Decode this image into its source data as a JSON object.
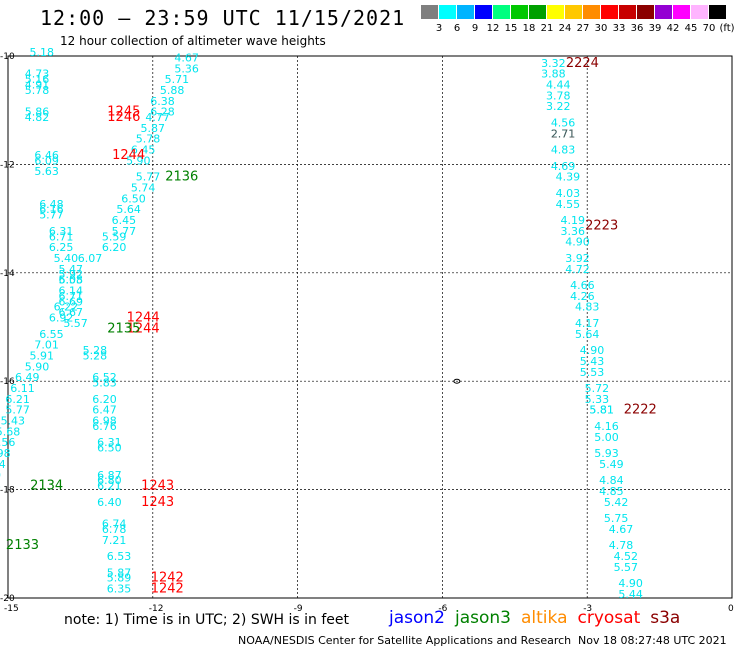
{
  "title": "12:00 – 23:59 UTC 11/15/2021",
  "subtitle": "12 hour collection of altimeter wave heights",
  "scale": {
    "labels": [
      "3",
      "6",
      "9",
      "12",
      "15",
      "18",
      "21",
      "24",
      "27",
      "30",
      "33",
      "36",
      "39",
      "42",
      "45",
      "70",
      "(ft)"
    ],
    "colors": [
      "#7f7f7f",
      "#00ffff",
      "#00b4ff",
      "#0000ff",
      "#00ff7f",
      "#00c800",
      "#00a000",
      "#ffff00",
      "#ffc800",
      "#ff8c00",
      "#ff0000",
      "#c80000",
      "#8b0000",
      "#9400d3",
      "#ff00ff",
      "#ffb4ff",
      "#000000"
    ]
  },
  "axes": {
    "x_ticks": [
      "-15",
      "-12",
      "-9",
      "-6",
      "-3",
      "0"
    ],
    "y_ticks": [
      "-10",
      "-12",
      "-14",
      "-16",
      "-18",
      "-20"
    ]
  },
  "swh_color": "#00e5ee",
  "passes": {
    "cryosat_color": "#ff0000",
    "s3a_color": "#8b0000",
    "jason3_color": "#008000",
    "labels": [
      {
        "text": "2224",
        "lon": -3.1,
        "lat": -10.2,
        "sat": "s3a"
      },
      {
        "text": "2223",
        "lon": -2.7,
        "lat": -13.2,
        "sat": "s3a"
      },
      {
        "text": "2222",
        "lon": -1.9,
        "lat": -16.6,
        "sat": "s3a"
      },
      {
        "text": "1245",
        "lon": -12.6,
        "lat": -11.1,
        "sat": "cryosat"
      },
      {
        "text": "1246",
        "lon": -12.6,
        "lat": -11.2,
        "sat": "cryosat"
      },
      {
        "text": "1244",
        "lon": -12.5,
        "lat": -11.9,
        "sat": "cryosat"
      },
      {
        "text": "1244",
        "lon": -12.2,
        "lat": -14.9,
        "sat": "cryosat"
      },
      {
        "text": "1244",
        "lon": -12.2,
        "lat": -15.1,
        "sat": "cryosat"
      },
      {
        "text": "1243",
        "lon": -11.9,
        "lat": -18.0,
        "sat": "cryosat"
      },
      {
        "text": "1243",
        "lon": -11.9,
        "lat": -18.3,
        "sat": "cryosat"
      },
      {
        "text": "1242",
        "lon": -11.7,
        "lat": -19.7,
        "sat": "cryosat"
      },
      {
        "text": "1242",
        "lon": -11.7,
        "lat": -19.9,
        "sat": "cryosat"
      },
      {
        "text": "2136",
        "lon": -11.4,
        "lat": -12.3,
        "sat": "jason3"
      },
      {
        "text": "2135",
        "lon": -12.6,
        "lat": -15.1,
        "sat": "jason3"
      },
      {
        "text": "2134",
        "lon": -14.2,
        "lat": -18.0,
        "sat": "jason3"
      },
      {
        "text": "2133",
        "lon": -14.7,
        "lat": -19.1,
        "sat": "jason3"
      }
    ]
  },
  "waves": [
    {
      "lon": -14.3,
      "lat": -10.0,
      "v": "5.18"
    },
    {
      "lon": -11.3,
      "lat": -10.1,
      "v": "4.67"
    },
    {
      "lon": -11.3,
      "lat": -10.3,
      "v": "5.36"
    },
    {
      "lon": -14.4,
      "lat": -10.4,
      "v": "4.73"
    },
    {
      "lon": -11.5,
      "lat": -10.5,
      "v": "5.71"
    },
    {
      "lon": -14.4,
      "lat": -10.5,
      "v": "5.16"
    },
    {
      "lon": -14.4,
      "lat": -10.6,
      "v": "4.91"
    },
    {
      "lon": -11.6,
      "lat": -10.7,
      "v": "5.88"
    },
    {
      "lon": -14.4,
      "lat": -10.7,
      "v": "5.78"
    },
    {
      "lon": -11.8,
      "lat": -10.9,
      "v": "6.38"
    },
    {
      "lon": -11.8,
      "lat": -11.1,
      "v": "6.28"
    },
    {
      "lon": -14.4,
      "lat": -11.1,
      "v": "5.86"
    },
    {
      "lon": -11.9,
      "lat": -11.2,
      "v": "4.77"
    },
    {
      "lon": -14.4,
      "lat": -11.2,
      "v": "4.82"
    },
    {
      "lon": -12.0,
      "lat": -11.4,
      "v": "5.87"
    },
    {
      "lon": -12.1,
      "lat": -11.6,
      "v": "5.78"
    },
    {
      "lon": -12.2,
      "lat": -11.8,
      "v": "6.45"
    },
    {
      "lon": -14.2,
      "lat": -11.9,
      "v": "6.46"
    },
    {
      "lon": -14.2,
      "lat": -12.0,
      "v": "6.09"
    },
    {
      "lon": -12.3,
      "lat": -12.0,
      "v": "5.90"
    },
    {
      "lon": -14.2,
      "lat": -12.2,
      "v": "5.63"
    },
    {
      "lon": -12.1,
      "lat": -12.3,
      "v": "5.77"
    },
    {
      "lon": -12.2,
      "lat": -12.5,
      "v": "5.74"
    },
    {
      "lon": -12.4,
      "lat": -12.7,
      "v": "6.50"
    },
    {
      "lon": -14.1,
      "lat": -12.8,
      "v": "6.48"
    },
    {
      "lon": -14.1,
      "lat": -12.9,
      "v": "6.16"
    },
    {
      "lon": -12.5,
      "lat": -12.9,
      "v": "5.64"
    },
    {
      "lon": -14.1,
      "lat": -13.0,
      "v": "5.77"
    },
    {
      "lon": -12.6,
      "lat": -13.1,
      "v": "6.45"
    },
    {
      "lon": -12.6,
      "lat": -13.3,
      "v": "5.77"
    },
    {
      "lon": -13.9,
      "lat": -13.3,
      "v": "6.31"
    },
    {
      "lon": -13.9,
      "lat": -13.4,
      "v": "6.71"
    },
    {
      "lon": -12.8,
      "lat": -13.4,
      "v": "5.59"
    },
    {
      "lon": -13.9,
      "lat": -13.6,
      "v": "6.25"
    },
    {
      "lon": -12.8,
      "lat": -13.6,
      "v": "6.20"
    },
    {
      "lon": -13.8,
      "lat": -13.8,
      "v": "5.40"
    },
    {
      "lon": -13.3,
      "lat": -13.8,
      "v": "6.07"
    },
    {
      "lon": -13.7,
      "lat": -14.0,
      "v": "5.47"
    },
    {
      "lon": -13.7,
      "lat": -14.1,
      "v": "5.92"
    },
    {
      "lon": -13.7,
      "lat": -14.2,
      "v": "6.05"
    },
    {
      "lon": -13.7,
      "lat": -14.2,
      "v": "5.58"
    },
    {
      "lon": -13.7,
      "lat": -14.4,
      "v": "6.14"
    },
    {
      "lon": -13.7,
      "lat": -14.5,
      "v": "6.71"
    },
    {
      "lon": -13.7,
      "lat": -14.6,
      "v": "6.69"
    },
    {
      "lon": -13.8,
      "lat": -14.7,
      "v": "6.22"
    },
    {
      "lon": -13.7,
      "lat": -14.8,
      "v": "6.67"
    },
    {
      "lon": -13.9,
      "lat": -14.9,
      "v": "6.92"
    },
    {
      "lon": -13.6,
      "lat": -15.0,
      "v": "5.57"
    },
    {
      "lon": -14.1,
      "lat": -15.2,
      "v": "6.55"
    },
    {
      "lon": -14.2,
      "lat": -15.4,
      "v": "7.01"
    },
    {
      "lon": -13.2,
      "lat": -15.5,
      "v": "5.28"
    },
    {
      "lon": -14.3,
      "lat": -15.6,
      "v": "5.91"
    },
    {
      "lon": -13.2,
      "lat": -15.6,
      "v": "5.28"
    },
    {
      "lon": -14.4,
      "lat": -15.8,
      "v": "5.90"
    },
    {
      "lon": -13.0,
      "lat": -16.0,
      "v": "6.52"
    },
    {
      "lon": -14.6,
      "lat": -16.0,
      "v": "6.49"
    },
    {
      "lon": -13.0,
      "lat": -16.1,
      "v": "5.83"
    },
    {
      "lon": -14.7,
      "lat": -16.2,
      "v": "6.11"
    },
    {
      "lon": -13.0,
      "lat": -16.4,
      "v": "6.20"
    },
    {
      "lon": -14.8,
      "lat": -16.4,
      "v": "6.21"
    },
    {
      "lon": -14.8,
      "lat": -16.6,
      "v": "5.77"
    },
    {
      "lon": -13.0,
      "lat": -16.6,
      "v": "6.47"
    },
    {
      "lon": -14.9,
      "lat": -16.8,
      "v": "5.43"
    },
    {
      "lon": -13.0,
      "lat": -16.8,
      "v": "6.98"
    },
    {
      "lon": -13.0,
      "lat": -16.9,
      "v": "6.76"
    },
    {
      "lon": -15.0,
      "lat": -17.0,
      "v": "5.68"
    },
    {
      "lon": -12.9,
      "lat": -17.2,
      "v": "6.31"
    },
    {
      "lon": -15.1,
      "lat": -17.2,
      "v": "5.56"
    },
    {
      "lon": -12.9,
      "lat": -17.3,
      "v": "6.50"
    },
    {
      "lon": -15.2,
      "lat": -17.4,
      "v": "5.98"
    },
    {
      "lon": -15.3,
      "lat": -17.6,
      "v": "6.24"
    },
    {
      "lon": -12.9,
      "lat": -17.8,
      "v": "6.87"
    },
    {
      "lon": -12.9,
      "lat": -17.9,
      "v": "6.80"
    },
    {
      "lon": -15.4,
      "lat": -17.8,
      "v": "5.50"
    },
    {
      "lon": -12.9,
      "lat": -18.0,
      "v": "6.21"
    },
    {
      "lon": -15.4,
      "lat": -18.0,
      "v": "5.43"
    },
    {
      "lon": -15.5,
      "lat": -18.2,
      "v": "5.76"
    },
    {
      "lon": -12.9,
      "lat": -18.3,
      "v": "6.40"
    },
    {
      "lon": -15.6,
      "lat": -18.4,
      "v": "5.72"
    },
    {
      "lon": -15.7,
      "lat": -18.6,
      "v": "6.43"
    },
    {
      "lon": -12.8,
      "lat": -18.7,
      "v": "6.74"
    },
    {
      "lon": -12.8,
      "lat": -18.8,
      "v": "6.78"
    },
    {
      "lon": -15.7,
      "lat": -18.8,
      "v": "5.76"
    },
    {
      "lon": -12.8,
      "lat": -19.0,
      "v": "7.21"
    },
    {
      "lon": -15.8,
      "lat": -19.0,
      "v": "5.47"
    },
    {
      "lon": -15.9,
      "lat": -19.1,
      "v": "4.86"
    },
    {
      "lon": -12.7,
      "lat": -19.3,
      "v": "6.53"
    },
    {
      "lon": -12.7,
      "lat": -19.6,
      "v": "5.87"
    },
    {
      "lon": -12.7,
      "lat": -19.7,
      "v": "5.89"
    },
    {
      "lon": -12.7,
      "lat": -19.9,
      "v": "6.35"
    },
    {
      "lon": -3.7,
      "lat": -10.2,
      "v": "3.32"
    },
    {
      "lon": -3.7,
      "lat": -10.4,
      "v": "3.88"
    },
    {
      "lon": -3.6,
      "lat": -10.6,
      "v": "4.44"
    },
    {
      "lon": -3.6,
      "lat": -10.8,
      "v": "3.78"
    },
    {
      "lon": -3.6,
      "lat": -11.0,
      "v": "3.22"
    },
    {
      "lon": -3.5,
      "lat": -11.3,
      "v": "4.56"
    },
    {
      "lon": -3.5,
      "lat": -11.5,
      "v": "2.71"
    },
    {
      "lon": -3.5,
      "lat": -11.8,
      "v": "4.83"
    },
    {
      "lon": -3.5,
      "lat": -12.1,
      "v": "4.69"
    },
    {
      "lon": -3.4,
      "lat": -12.3,
      "v": "4.39"
    },
    {
      "lon": -3.4,
      "lat": -12.6,
      "v": "4.03"
    },
    {
      "lon": -3.4,
      "lat": -12.8,
      "v": "4.55"
    },
    {
      "lon": -3.3,
      "lat": -13.1,
      "v": "4.19"
    },
    {
      "lon": -3.3,
      "lat": -13.3,
      "v": "3.36"
    },
    {
      "lon": -3.2,
      "lat": -13.5,
      "v": "4.90"
    },
    {
      "lon": -3.2,
      "lat": -13.8,
      "v": "3.92"
    },
    {
      "lon": -3.2,
      "lat": -14.0,
      "v": "4.72"
    },
    {
      "lon": -3.1,
      "lat": -14.3,
      "v": "4.66"
    },
    {
      "lon": -3.1,
      "lat": -14.5,
      "v": "4.26"
    },
    {
      "lon": -3.0,
      "lat": -14.7,
      "v": "4.83"
    },
    {
      "lon": -3.0,
      "lat": -15.0,
      "v": "4.17"
    },
    {
      "lon": -3.0,
      "lat": -15.2,
      "v": "5.64"
    },
    {
      "lon": -2.9,
      "lat": -15.5,
      "v": "4.90"
    },
    {
      "lon": -2.9,
      "lat": -15.7,
      "v": "5.43"
    },
    {
      "lon": -2.9,
      "lat": -15.9,
      "v": "5.53"
    },
    {
      "lon": -2.8,
      "lat": -16.2,
      "v": "5.72"
    },
    {
      "lon": -2.8,
      "lat": -16.4,
      "v": "5.33"
    },
    {
      "lon": -2.7,
      "lat": -16.6,
      "v": "5.81"
    },
    {
      "lon": -2.7,
      "lat": -16.6,
      "v": "5.81"
    },
    {
      "lon": -2.6,
      "lat": -16.9,
      "v": "4.16"
    },
    {
      "lon": -2.6,
      "lat": -17.1,
      "v": "5.00"
    },
    {
      "lon": -2.6,
      "lat": -17.4,
      "v": "5.93"
    },
    {
      "lon": -2.5,
      "lat": -17.6,
      "v": "5.49"
    },
    {
      "lon": -2.5,
      "lat": -17.9,
      "v": "4.84"
    },
    {
      "lon": -2.5,
      "lat": -18.1,
      "v": "4.85"
    },
    {
      "lon": -2.4,
      "lat": -18.3,
      "v": "5.42"
    },
    {
      "lon": -2.4,
      "lat": -18.6,
      "v": "5.75"
    },
    {
      "lon": -2.3,
      "lat": -18.8,
      "v": "4.67"
    },
    {
      "lon": -2.3,
      "lat": -19.1,
      "v": "4.78"
    },
    {
      "lon": -2.2,
      "lat": -19.3,
      "v": "4.52"
    },
    {
      "lon": -2.2,
      "lat": -19.5,
      "v": "5.57"
    },
    {
      "lon": -2.1,
      "lat": -19.8,
      "v": "4.90"
    },
    {
      "lon": -2.1,
      "lat": -20.0,
      "v": "5.44"
    },
    {
      "lon": -3.5,
      "lat": -11.5,
      "v": "2.71",
      "grey": true
    }
  ],
  "note": "note:  1) Time is in UTC;  2) SWH is in feet",
  "legend": [
    {
      "name": "jason2",
      "color": "#0000ff"
    },
    {
      "name": "jason3",
      "color": "#008000"
    },
    {
      "name": "altika",
      "color": "#ff8c00"
    },
    {
      "name": "cryosat",
      "color": "#ff0000"
    },
    {
      "name": "s3a",
      "color": "#8b0000"
    }
  ],
  "credit": "NOAA/NESDIS Center for Satellite Applications and Research",
  "timestamp": "Nov 18 08:27:48 UTC 2021"
}
